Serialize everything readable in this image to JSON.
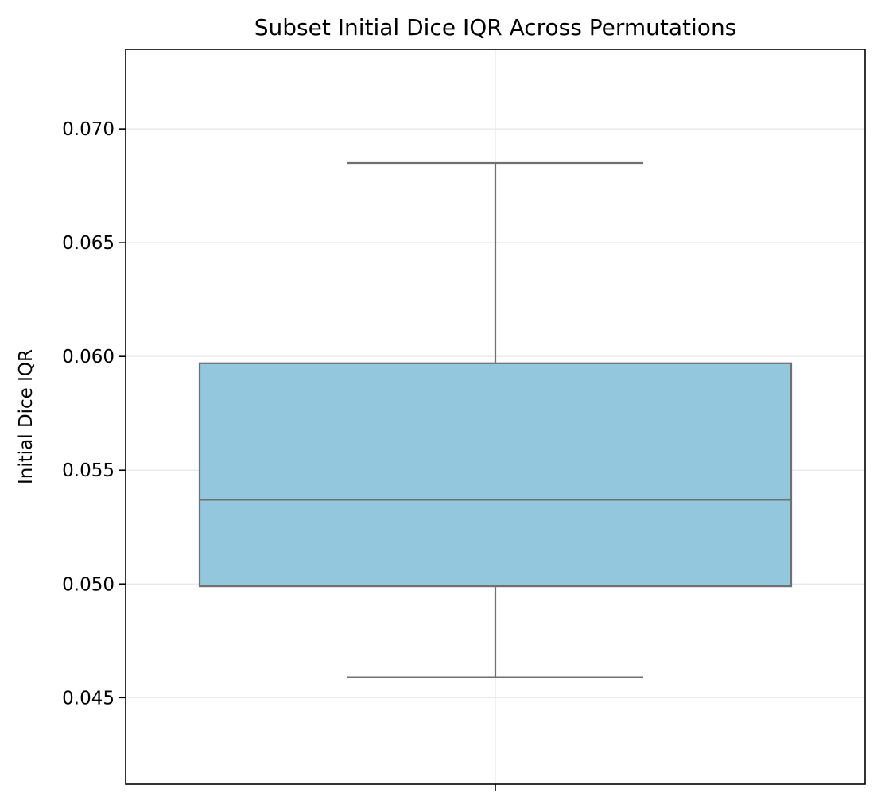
{
  "chart_data": {
    "type": "box",
    "title": "Subset Initial Dice IQR Across Permutations",
    "xlabel": "",
    "ylabel": "Initial Dice IQR",
    "ylim": [
      0.0412,
      0.0735
    ],
    "yticks": [
      0.045,
      0.05,
      0.055,
      0.06,
      0.065,
      0.07
    ],
    "ytick_labels": [
      "0.045",
      "0.050",
      "0.055",
      "0.060",
      "0.065",
      "0.070"
    ],
    "grid": true,
    "box": {
      "whisker_low": 0.0459,
      "q1": 0.0499,
      "median": 0.0537,
      "q3": 0.0597,
      "whisker_high": 0.0685
    },
    "box_color": "#92c7de",
    "line_color": "#707070"
  }
}
